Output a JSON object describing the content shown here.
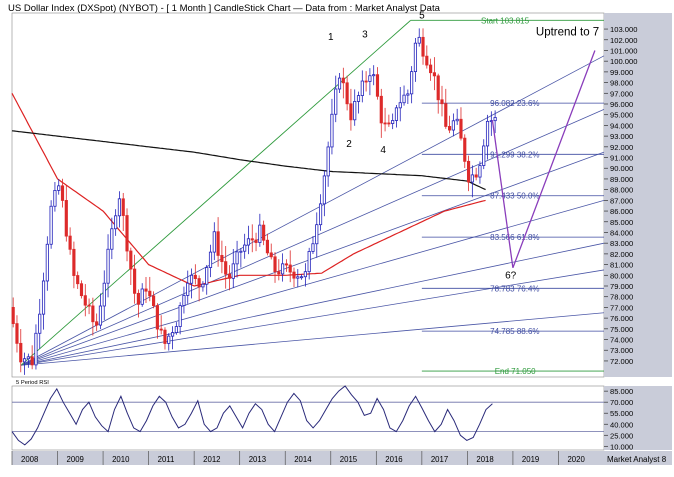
{
  "header": {
    "title": "US Dollar Index (DXSpot) (NYBOT) -  [ 1 Month ] CandleStick Chart — Data from : Market Analyst Data"
  },
  "colors": {
    "up": "#2222bb",
    "down": "#dd2a2a",
    "ma_short": "#dd2222",
    "ma_long": "#111111",
    "fan": "#4a56a6",
    "fib": "#3d4aa0",
    "start_end": "#2e9a3c",
    "projection": "#8a3dbb",
    "background": "#ffffff",
    "axis_bg": "#c9ccd9",
    "axis_dark": "#3a3a3a"
  },
  "chart_data": [
    {
      "type": "candlestick",
      "title": "US Dollar Index (DXSpot) (NYBOT) - [ 1 Month ] CandleStick Chart",
      "x_ticks": [
        "2008",
        "2009",
        "2010",
        "2011",
        "2012",
        "2013",
        "2014",
        "2015",
        "2016",
        "2017",
        "2018",
        "2019",
        "2020"
      ],
      "xlim": [
        2008.0,
        2021.0
      ],
      "ylim": [
        70.5,
        104.5
      ],
      "y_ticks": [
        72,
        73,
        74,
        75,
        76,
        77,
        78,
        79,
        80,
        81,
        82,
        83,
        84,
        85,
        86,
        87,
        88,
        89,
        90,
        91,
        92,
        93,
        94,
        95,
        96,
        97,
        98,
        99,
        100,
        101,
        102,
        103
      ],
      "y_tick_labels": [
        "72.000",
        "73.000",
        "74.000",
        "75.000",
        "76.000",
        "77.000",
        "78.000",
        "79.000",
        "80.000",
        "81.000",
        "82.000",
        "83.000",
        "84.000",
        "85.000",
        "86.000",
        "87.000",
        "88.000",
        "89.000",
        "90.000",
        "91.000",
        "92.000",
        "93.000",
        "94.000",
        "95.000",
        "96.000",
        "97.000",
        "98.000",
        "99.000",
        "100.000",
        "101.000",
        "102.000",
        "103.000"
      ],
      "price_keypoints": [
        [
          2008.0,
          77.0
        ],
        [
          2008.25,
          72.5
        ],
        [
          2008.5,
          72.0
        ],
        [
          2008.7,
          78.0
        ],
        [
          2008.9,
          86.0
        ],
        [
          2009.1,
          88.5
        ],
        [
          2009.4,
          80.0
        ],
        [
          2009.9,
          75.0
        ],
        [
          2010.1,
          80.0
        ],
        [
          2010.4,
          88.0
        ],
        [
          2010.8,
          77.0
        ],
        [
          2011.0,
          79.0
        ],
        [
          2011.4,
          73.5
        ],
        [
          2011.7,
          76.0
        ],
        [
          2011.9,
          80.0
        ],
        [
          2012.2,
          79.0
        ],
        [
          2012.5,
          83.5
        ],
        [
          2012.8,
          79.5
        ],
        [
          2013.1,
          82.5
        ],
        [
          2013.5,
          84.0
        ],
        [
          2013.8,
          80.5
        ],
        [
          2014.1,
          80.5
        ],
        [
          2014.5,
          80.0
        ],
        [
          2014.7,
          84.0
        ],
        [
          2014.9,
          89.0
        ],
        [
          2015.1,
          95.0
        ],
        [
          2015.25,
          99.0
        ],
        [
          2015.5,
          95.0
        ],
        [
          2015.8,
          98.0
        ],
        [
          2015.95,
          99.5
        ],
        [
          2016.2,
          94.0
        ],
        [
          2016.4,
          93.5
        ],
        [
          2016.5,
          96.0
        ],
        [
          2016.75,
          97.0
        ],
        [
          2016.95,
          102.5
        ],
        [
          2017.1,
          101.0
        ],
        [
          2017.3,
          99.0
        ],
        [
          2017.6,
          93.5
        ],
        [
          2017.8,
          94.5
        ],
        [
          2017.95,
          92.0
        ],
        [
          2018.1,
          89.0
        ],
        [
          2018.3,
          90.0
        ],
        [
          2018.5,
          94.5
        ],
        [
          2018.55,
          94.5
        ]
      ],
      "ma_short_points": [
        [
          2008.0,
          97.0
        ],
        [
          2009.0,
          89.0
        ],
        [
          2010.0,
          86.0
        ],
        [
          2011.0,
          81.0
        ],
        [
          2012.0,
          79.0
        ],
        [
          2013.0,
          80.0
        ],
        [
          2014.0,
          80.0
        ],
        [
          2014.8,
          80.2
        ],
        [
          2015.5,
          82.0
        ],
        [
          2016.5,
          84.0
        ],
        [
          2017.5,
          86.0
        ],
        [
          2018.4,
          87.0
        ]
      ],
      "ma_long_points": [
        [
          2008.0,
          93.5
        ],
        [
          2010.0,
          92.5
        ],
        [
          2012.0,
          91.5
        ],
        [
          2013.0,
          90.8
        ],
        [
          2014.0,
          90.2
        ],
        [
          2015.0,
          89.7
        ],
        [
          2016.0,
          89.5
        ],
        [
          2017.0,
          89.3
        ],
        [
          2018.0,
          88.8
        ],
        [
          2018.4,
          88.0
        ]
      ],
      "fan_origin": [
        2008.2,
        71.6
      ],
      "fan_end_year": 2021.0,
      "fan_end_values": [
        83.0,
        76.5,
        80.5,
        87.0,
        91.5,
        95.5,
        100.5
      ],
      "fan_top_through": [
        2016.75,
        103.8
      ],
      "start_line": {
        "from": 2016.75,
        "value": 103.815,
        "label": "Start 103.815"
      },
      "end_line": {
        "from": 2017.0,
        "value": 71.05,
        "label": "End 71.050"
      },
      "fib_levels": [
        {
          "value": 96.082,
          "label": "96.082 23.6%",
          "from": 2017.0
        },
        {
          "value": 91.299,
          "label": "91.299 38.2%",
          "from": 2017.0
        },
        {
          "value": 87.433,
          "label": "87.433 50.0%",
          "from": 2017.0
        },
        {
          "value": 83.566,
          "label": "83.566 61.8%",
          "from": 2017.0
        },
        {
          "value": 78.783,
          "label": "78.783 76.4%",
          "from": 2017.0
        },
        {
          "value": 74.785,
          "label": "74.785 88.6%",
          "from": 2017.0
        }
      ],
      "projection_path": [
        [
          2018.55,
          94.5
        ],
        [
          2019.0,
          80.7
        ],
        [
          2020.8,
          101.0
        ]
      ],
      "wave_labels": [
        {
          "text": "1",
          "x": 2015.0,
          "y": 102.0
        },
        {
          "text": "2",
          "x": 2015.4,
          "y": 92.0
        },
        {
          "text": "3",
          "x": 2015.75,
          "y": 102.2
        },
        {
          "text": "4",
          "x": 2016.15,
          "y": 91.4
        },
        {
          "text": "5",
          "x": 2017.0,
          "y": 104.0
        },
        {
          "text": "6?",
          "x": 2018.95,
          "y": 79.7
        }
      ],
      "annotation": {
        "text": "Uptrend to 7",
        "x": 2020.2,
        "y": 102.4
      }
    },
    {
      "type": "line",
      "title": "5 Period RSI",
      "ylim": [
        5,
        92
      ],
      "y_ticks": [
        10,
        25,
        40,
        55,
        70,
        85
      ],
      "y_tick_labels": [
        "10.000",
        "25.000",
        "40.000",
        "55.000",
        "70.000",
        "85.000"
      ],
      "ref_lines": [
        70,
        30
      ],
      "values": [
        30,
        18,
        12,
        20,
        35,
        55,
        75,
        88,
        70,
        55,
        40,
        60,
        70,
        50,
        38,
        30,
        60,
        78,
        55,
        35,
        30,
        45,
        65,
        78,
        70,
        50,
        35,
        40,
        55,
        72,
        40,
        30,
        35,
        55,
        65,
        50,
        35,
        55,
        68,
        60,
        40,
        30,
        50,
        70,
        82,
        72,
        45,
        35,
        45,
        60,
        75,
        85,
        92,
        80,
        70,
        52,
        55,
        75,
        60,
        35,
        30,
        45,
        65,
        78,
        62,
        45,
        30,
        40,
        60,
        45,
        25,
        18,
        22,
        40,
        60,
        68
      ],
      "x_start": 2008.0,
      "x_end": 2018.55
    }
  ],
  "footer": {
    "brand": "Market Analyst 8"
  }
}
